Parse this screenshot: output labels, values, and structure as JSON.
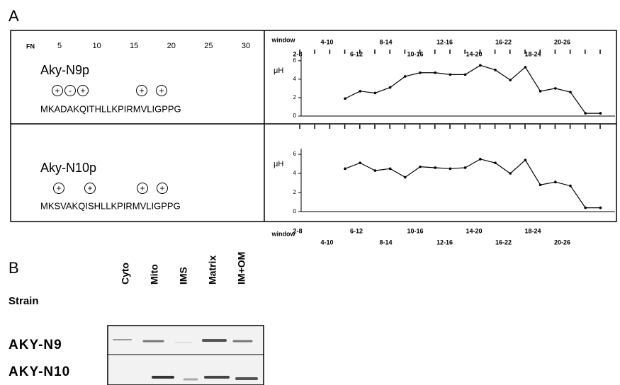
{
  "panel_a": {
    "label": "A",
    "ruler": {
      "label": "FN",
      "ticks": [
        "5",
        "10",
        "15",
        "20",
        "25",
        "30"
      ]
    },
    "constructs": [
      {
        "name": "Aky-N9p",
        "charges": [
          "+",
          "-",
          "+",
          "+",
          "+"
        ],
        "sequence": "MKADAKQITHLLKPIRMVLIGPPG"
      },
      {
        "name": "Aky-N10p",
        "charges": [
          "+",
          "+",
          "+",
          "+"
        ],
        "sequence": "MKSVAKQISHLLKPIRMVLIGPPG"
      }
    ]
  },
  "chart_data": [
    {
      "type": "line",
      "x_label": "window",
      "window_labels": [
        "2-8",
        "4-10",
        "6-12",
        "8-14",
        "10-16",
        "12-16",
        "14-20",
        "16-22",
        "18-24",
        "20-26"
      ],
      "ylabel": "μH",
      "ylim": [
        0,
        6.6
      ],
      "yticks": [
        0,
        2,
        4,
        6
      ],
      "color": "#000000",
      "values": [
        1.9,
        2.7,
        2.5,
        3.1,
        4.3,
        4.7,
        4.7,
        4.5,
        4.5,
        5.5,
        5.0,
        3.9,
        5.3,
        2.7,
        3.0,
        2.6,
        0.3,
        0.3
      ]
    },
    {
      "type": "line",
      "x_label": "window",
      "window_labels": [
        "2-8",
        "4-10",
        "6-12",
        "8-14",
        "10-16",
        "12-16",
        "14-20",
        "16-22",
        "18-24",
        "20-26"
      ],
      "ylabel": "μH",
      "ylim": [
        0,
        6.6
      ],
      "yticks": [
        0,
        2,
        4,
        6
      ],
      "color": "#000000",
      "values": [
        4.5,
        5.1,
        4.3,
        4.5,
        3.6,
        4.7,
        4.6,
        4.5,
        4.6,
        5.5,
        5.1,
        4.0,
        5.4,
        2.8,
        3.1,
        2.7,
        0.4,
        0.4
      ]
    }
  ],
  "panel_b": {
    "label": "B",
    "row_header": "Strain",
    "columns": [
      "Cyto",
      "Mito",
      "IMS",
      "Matrix",
      "IM+OM"
    ],
    "rows": [
      "AKY-N9",
      "AKY-N10"
    ]
  }
}
